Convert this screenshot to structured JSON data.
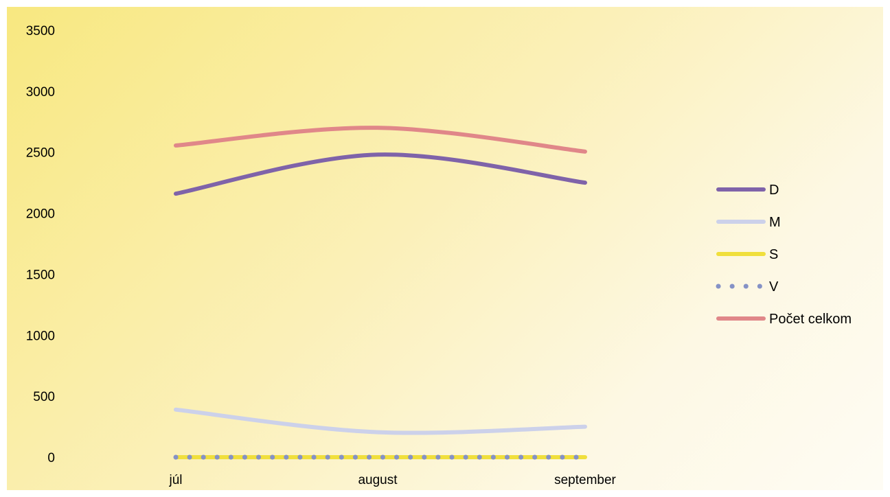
{
  "chart_data": {
    "type": "line",
    "title": "",
    "xlabel": "",
    "ylabel": "",
    "categories": [
      "júl",
      "august",
      "september"
    ],
    "ylim": [
      0,
      3500
    ],
    "yticks": [
      0,
      500,
      1000,
      1500,
      2000,
      2500,
      3000,
      3500
    ],
    "grid": false,
    "legend_position": "right",
    "smooth": true,
    "series": [
      {
        "name": "D",
        "values": [
          2160,
          2480,
          2250
        ],
        "color": "#7f63a9",
        "style": "solid"
      },
      {
        "name": "M",
        "values": [
          390,
          205,
          250
        ],
        "color": "#ccd1ea",
        "style": "solid"
      },
      {
        "name": "S",
        "values": [
          0,
          0,
          0
        ],
        "color": "#f0df3c",
        "style": "solid"
      },
      {
        "name": "V",
        "values": [
          0,
          0,
          0
        ],
        "color": "#8592c6",
        "style": "dotted"
      },
      {
        "name": "Počet celkom",
        "values": [
          2555,
          2700,
          2505
        ],
        "color": "#e08789",
        "style": "solid"
      }
    ]
  }
}
